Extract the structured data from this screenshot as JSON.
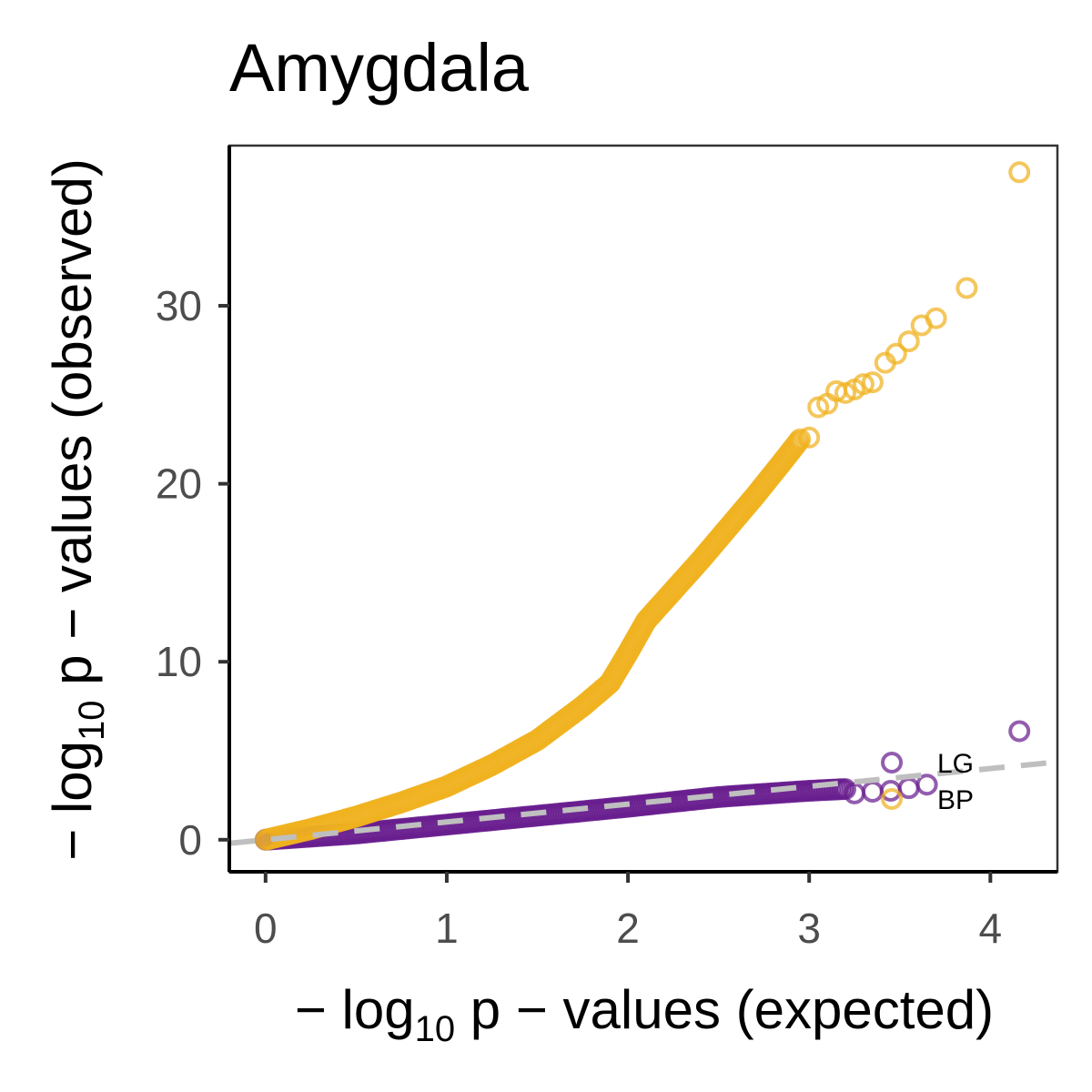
{
  "chart_data": {
    "type": "scatter",
    "title": "Amygdala",
    "xlabel": {
      "prefix": "− log",
      "sub": "10",
      "suffix": " p − values (expected)"
    },
    "ylabel": {
      "prefix": "− log",
      "sub": "10",
      "suffix": " p − values (observed)"
    },
    "xlim": [
      -0.2,
      4.37
    ],
    "ylim": [
      -1.8,
      39
    ],
    "x_ticks": [
      0,
      1,
      2,
      3,
      4
    ],
    "y_ticks": [
      0,
      10,
      20,
      30
    ],
    "x_tick_labels": [
      "0",
      "1",
      "2",
      "3",
      "4"
    ],
    "y_tick_labels": [
      "0",
      "10",
      "20",
      "30"
    ],
    "grid": false,
    "legend_position": "bottom-right",
    "reference_line": {
      "style": "dashed",
      "color": "#bfbfbf",
      "x": [
        -0.2,
        4.37
      ],
      "y": [
        -0.2,
        4.37
      ]
    },
    "series": [
      {
        "name": "LG",
        "color": "#6a1f8f",
        "curve": {
          "x": [
            0,
            0.5,
            1,
            1.5,
            2,
            2.5,
            3,
            3.2
          ],
          "y": [
            0,
            0.35,
            0.85,
            1.35,
            1.85,
            2.4,
            2.75,
            2.85
          ]
        },
        "points": [
          {
            "x": 3.25,
            "y": 2.6
          },
          {
            "x": 3.35,
            "y": 2.7
          },
          {
            "x": 3.45,
            "y": 2.75
          },
          {
            "x": 3.55,
            "y": 2.9
          },
          {
            "x": 3.65,
            "y": 3.1
          },
          {
            "x": 4.16,
            "y": 6.1
          }
        ]
      },
      {
        "name": "BP",
        "color": "#f0b21f",
        "curve": {
          "x": [
            0,
            0.25,
            0.5,
            0.75,
            1,
            1.25,
            1.5,
            1.75,
            1.9,
            2.0,
            2.1,
            2.25,
            2.4,
            2.55,
            2.7,
            2.85,
            2.95
          ],
          "y": [
            0,
            0.6,
            1.3,
            2.1,
            3.0,
            4.2,
            5.6,
            7.5,
            8.8,
            10.5,
            12.3,
            14.0,
            15.7,
            17.5,
            19.3,
            21.2,
            22.5
          ]
        },
        "points": [
          {
            "x": 3.0,
            "y": 22.6
          },
          {
            "x": 3.05,
            "y": 24.3
          },
          {
            "x": 3.1,
            "y": 24.5
          },
          {
            "x": 3.15,
            "y": 25.2
          },
          {
            "x": 3.2,
            "y": 25.1
          },
          {
            "x": 3.25,
            "y": 25.3
          },
          {
            "x": 3.3,
            "y": 25.6
          },
          {
            "x": 3.35,
            "y": 25.7
          },
          {
            "x": 3.42,
            "y": 26.8
          },
          {
            "x": 3.48,
            "y": 27.3
          },
          {
            "x": 3.55,
            "y": 28.0
          },
          {
            "x": 3.62,
            "y": 28.9
          },
          {
            "x": 3.7,
            "y": 29.3
          },
          {
            "x": 3.87,
            "y": 31.0
          },
          {
            "x": 4.16,
            "y": 37.5
          }
        ]
      }
    ]
  }
}
